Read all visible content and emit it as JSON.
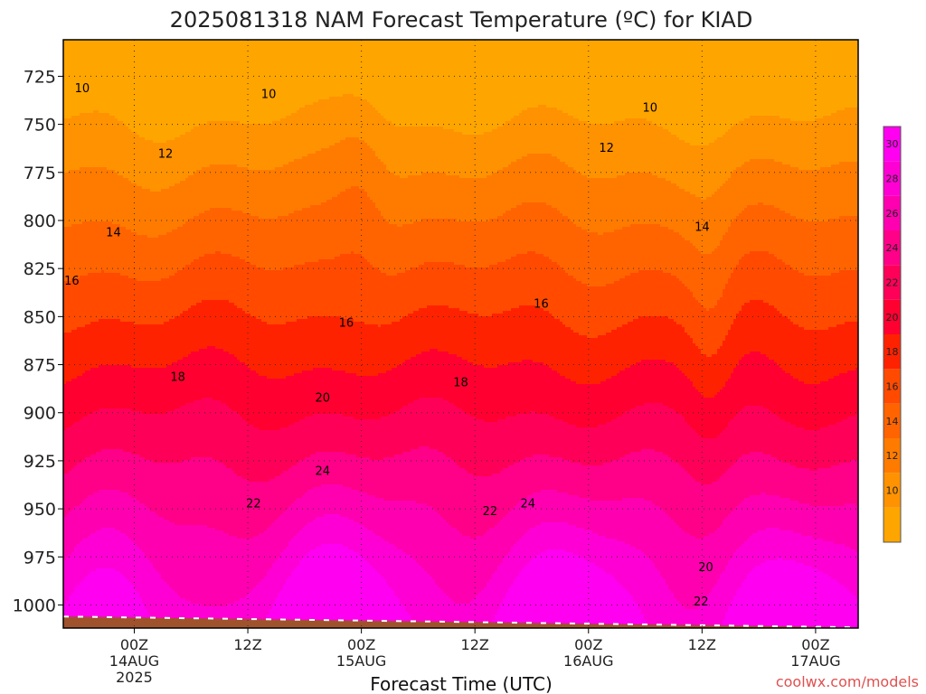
{
  "chart_data": {
    "type": "heatmap",
    "title": "2025081318 NAM Forecast Temperature (ºC) for KIAD",
    "xlabel": "Forecast Time (UTC)",
    "ylabel": "",
    "watermark": "coolwx.com/models",
    "y_axis": {
      "unit": "hPa",
      "inverted": true,
      "range": [
        706,
        1012
      ],
      "ticks": [
        "725",
        "750",
        "775",
        "800",
        "825",
        "850",
        "875",
        "900",
        "925",
        "950",
        "975",
        "1000"
      ]
    },
    "x_axis": {
      "range_hours_from_18Z_13AUG": [
        -1.5,
        82.5
      ],
      "ticks": [
        {
          "hour": 6,
          "label": "00Z",
          "sub": "14AUG",
          "year": "2025"
        },
        {
          "hour": 18,
          "label": "12Z",
          "sub": "",
          "year": ""
        },
        {
          "hour": 30,
          "label": "00Z",
          "sub": "15AUG",
          "year": ""
        },
        {
          "hour": 42,
          "label": "12Z",
          "sub": "",
          "year": ""
        },
        {
          "hour": 54,
          "label": "00Z",
          "sub": "16AUG",
          "year": ""
        },
        {
          "hour": 66,
          "label": "12Z",
          "sub": "",
          "year": ""
        },
        {
          "hour": 78,
          "label": "00Z",
          "sub": "17AUG",
          "year": ""
        }
      ]
    },
    "grid": true,
    "colorbar": {
      "placement": "right",
      "levels": [
        8,
        10,
        12,
        14,
        16,
        18,
        20,
        22,
        24,
        26,
        28,
        30,
        32
      ],
      "labels": [
        "10",
        "12",
        "14",
        "16",
        "18",
        "20",
        "22",
        "24",
        "26",
        "28",
        "30"
      ],
      "colors": [
        "#ffa500",
        "#ff9200",
        "#ff7b00",
        "#ff6400",
        "#ff4a00",
        "#ff2200",
        "#ff0030",
        "#ff0058",
        "#ff0088",
        "#ff00b0",
        "#ff00d4",
        "#ff00f0"
      ]
    },
    "isotherm_labels": [
      {
        "text": "10",
        "t": 0.5,
        "p": 731
      },
      {
        "text": "10",
        "t": 20.2,
        "p": 734
      },
      {
        "text": "10",
        "t": 60.5,
        "p": 741
      },
      {
        "text": "12",
        "t": 9.3,
        "p": 765
      },
      {
        "text": "12",
        "t": 55.9,
        "p": 762
      },
      {
        "text": "14",
        "t": 3.8,
        "p": 806
      },
      {
        "text": "14",
        "t": 66.0,
        "p": 803
      },
      {
        "text": "16",
        "t": -0.6,
        "p": 831
      },
      {
        "text": "16",
        "t": 28.4,
        "p": 853
      },
      {
        "text": "16",
        "t": 49.0,
        "p": 843
      },
      {
        "text": "18",
        "t": 10.6,
        "p": 881
      },
      {
        "text": "18",
        "t": 40.5,
        "p": 884
      },
      {
        "text": "20",
        "t": 25.9,
        "p": 892
      },
      {
        "text": "20",
        "t": 66.4,
        "p": 980
      },
      {
        "text": "22",
        "t": 18.6,
        "p": 947
      },
      {
        "text": "22",
        "t": 43.6,
        "p": 951
      },
      {
        "text": "22",
        "t": 65.9,
        "p": 998
      },
      {
        "text": "24",
        "t": 25.9,
        "p": 930
      },
      {
        "text": "24",
        "t": 47.6,
        "p": 947
      }
    ],
    "terrain": {
      "color": "#a0522d",
      "surface_pressure_hPa": 1006
    }
  }
}
